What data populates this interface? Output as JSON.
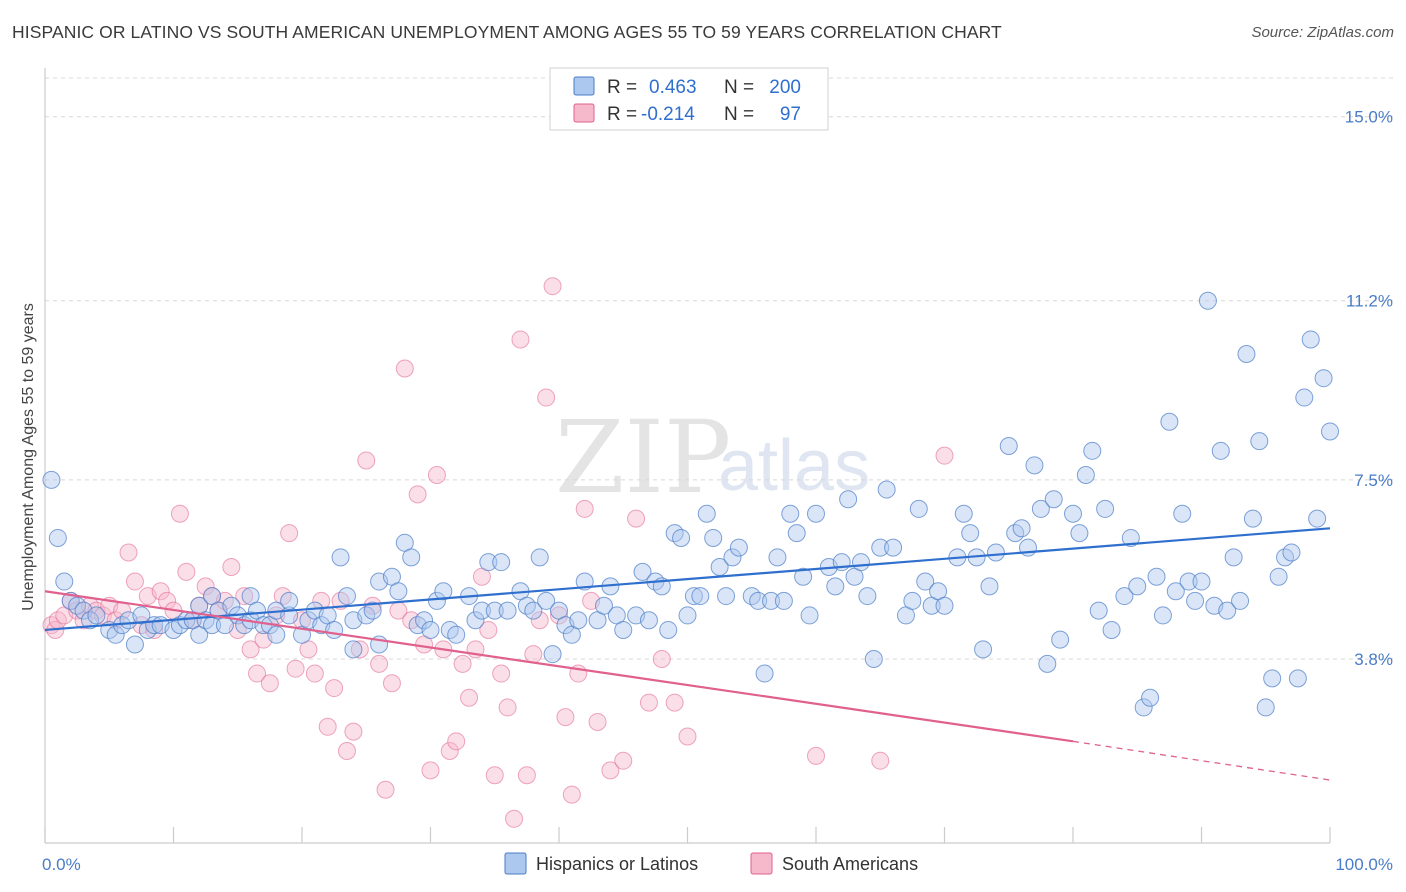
{
  "header": {
    "title": "HISPANIC OR LATINO VS SOUTH AMERICAN UNEMPLOYMENT AMONG AGES 55 TO 59 YEARS CORRELATION CHART",
    "source": "Source: ZipAtlas.com"
  },
  "watermark": {
    "zip": "ZIP",
    "atlas": "atlas"
  },
  "legend": {
    "rows": [
      {
        "r_label": "R =",
        "r_value": "0.463",
        "n_label": "N =",
        "n_value": "200"
      },
      {
        "r_label": "R =",
        "r_value": "-0.214",
        "n_label": "N =",
        "n_value": "97"
      }
    ]
  },
  "bottom_legend": {
    "series1": "Hispanics or Latinos",
    "series2": "South Americans"
  },
  "colors": {
    "blue": "#4a7cc7",
    "blue_fill": "#adc8ee",
    "blue_line": "#2f6fce",
    "pink": "#e0608e",
    "pink_fill": "#f6b9cc",
    "grid": "#d8d8d8",
    "axis": "#cccccc"
  },
  "chart_data": {
    "type": "scatter",
    "title": "HISPANIC OR LATINO VS SOUTH AMERICAN UNEMPLOYMENT AMONG AGES 55 TO 59 YEARS CORRELATION CHART",
    "xlabel": "",
    "ylabel": "Unemployment Among Ages 55 to 59 years",
    "xlim": [
      0,
      100
    ],
    "ylim": [
      0,
      15.8
    ],
    "x_tick_labels": [
      "0.0%",
      "100.0%"
    ],
    "y_ticks": [
      3.8,
      7.5,
      11.2,
      15.0
    ],
    "y_tick_labels": [
      "3.8%",
      "7.5%",
      "11.2%",
      "15.0%"
    ],
    "grid": true,
    "legend_position": "top-center",
    "series": [
      {
        "name": "Hispanics or Latinos",
        "color": "#4a7cc7",
        "R": 0.463,
        "N": 200,
        "trend": {
          "x": [
            0,
            100
          ],
          "y": [
            4.4,
            6.5
          ]
        },
        "points": [
          [
            0.5,
            7.5
          ],
          [
            1,
            6.3
          ],
          [
            1.5,
            5.4
          ],
          [
            2,
            5.0
          ],
          [
            2.5,
            4.9
          ],
          [
            3,
            4.8
          ],
          [
            3.5,
            4.6
          ],
          [
            4,
            4.7
          ],
          [
            5,
            4.4
          ],
          [
            5.5,
            4.3
          ],
          [
            6,
            4.5
          ],
          [
            6.5,
            4.6
          ],
          [
            7,
            4.1
          ],
          [
            7.5,
            4.7
          ],
          [
            8,
            4.4
          ],
          [
            8.5,
            4.5
          ],
          [
            9,
            4.5
          ],
          [
            10,
            4.4
          ],
          [
            10.5,
            4.5
          ],
          [
            11,
            4.6
          ],
          [
            11.5,
            4.6
          ],
          [
            12,
            4.3
          ],
          [
            12,
            4.9
          ],
          [
            12.5,
            4.6
          ],
          [
            13,
            4.5
          ],
          [
            13,
            5.1
          ],
          [
            13.5,
            4.8
          ],
          [
            14,
            4.5
          ],
          [
            14.5,
            4.9
          ],
          [
            15,
            4.7
          ],
          [
            15.5,
            4.5
          ],
          [
            16,
            4.6
          ],
          [
            16,
            5.1
          ],
          [
            16.5,
            4.8
          ],
          [
            17,
            4.5
          ],
          [
            17.5,
            4.5
          ],
          [
            18,
            4.3
          ],
          [
            18,
            4.8
          ],
          [
            19,
            4.7
          ],
          [
            19,
            5.0
          ],
          [
            20,
            4.3
          ],
          [
            20.5,
            4.6
          ],
          [
            21,
            4.8
          ],
          [
            21.5,
            4.5
          ],
          [
            22,
            4.7
          ],
          [
            22.5,
            4.4
          ],
          [
            23,
            5.9
          ],
          [
            23.5,
            5.1
          ],
          [
            24,
            4.0
          ],
          [
            24,
            4.6
          ],
          [
            25,
            4.7
          ],
          [
            25.5,
            4.8
          ],
          [
            26,
            5.4
          ],
          [
            26,
            4.1
          ],
          [
            27,
            5.5
          ],
          [
            27.5,
            5.2
          ],
          [
            28,
            6.2
          ],
          [
            28.5,
            5.9
          ],
          [
            29,
            4.5
          ],
          [
            29.5,
            4.6
          ],
          [
            30,
            4.4
          ],
          [
            30.5,
            5.0
          ],
          [
            31,
            5.2
          ],
          [
            31.5,
            4.4
          ],
          [
            32,
            4.3
          ],
          [
            33,
            5.1
          ],
          [
            33.5,
            4.6
          ],
          [
            34,
            4.8
          ],
          [
            34.5,
            5.8
          ],
          [
            35,
            4.8
          ],
          [
            35.5,
            5.8
          ],
          [
            36,
            4.8
          ],
          [
            37,
            5.2
          ],
          [
            37.5,
            4.9
          ],
          [
            38,
            4.8
          ],
          [
            38.5,
            5.9
          ],
          [
            39,
            5.0
          ],
          [
            39.5,
            3.9
          ],
          [
            40,
            4.8
          ],
          [
            40.5,
            4.5
          ],
          [
            41,
            4.3
          ],
          [
            41.5,
            4.6
          ],
          [
            42,
            5.4
          ],
          [
            43,
            4.6
          ],
          [
            43.5,
            4.9
          ],
          [
            44,
            5.3
          ],
          [
            44.5,
            4.7
          ],
          [
            45,
            4.4
          ],
          [
            46,
            4.7
          ],
          [
            46.5,
            5.6
          ],
          [
            47,
            4.6
          ],
          [
            47.5,
            5.4
          ],
          [
            48,
            5.3
          ],
          [
            48.5,
            4.4
          ],
          [
            49,
            6.4
          ],
          [
            49.5,
            6.3
          ],
          [
            50,
            4.7
          ],
          [
            50.5,
            5.1
          ],
          [
            51,
            5.1
          ],
          [
            51.5,
            6.8
          ],
          [
            52,
            6.3
          ],
          [
            52.5,
            5.7
          ],
          [
            53,
            5.1
          ],
          [
            53.5,
            5.9
          ],
          [
            54,
            6.1
          ],
          [
            55,
            5.1
          ],
          [
            55.5,
            5.0
          ],
          [
            56,
            3.5
          ],
          [
            56.5,
            5.0
          ],
          [
            57,
            5.9
          ],
          [
            57.5,
            5.0
          ],
          [
            58,
            6.8
          ],
          [
            58.5,
            6.4
          ],
          [
            59,
            5.5
          ],
          [
            59.5,
            4.7
          ],
          [
            60,
            6.8
          ],
          [
            61,
            5.7
          ],
          [
            61.5,
            5.3
          ],
          [
            62,
            5.8
          ],
          [
            62.5,
            7.1
          ],
          [
            63,
            5.5
          ],
          [
            63.5,
            5.8
          ],
          [
            64,
            5.1
          ],
          [
            64.5,
            3.8
          ],
          [
            65,
            6.1
          ],
          [
            65.5,
            7.3
          ],
          [
            66,
            6.1
          ],
          [
            67,
            4.7
          ],
          [
            67.5,
            5.0
          ],
          [
            68,
            6.9
          ],
          [
            68.5,
            5.4
          ],
          [
            69,
            4.9
          ],
          [
            69.5,
            5.2
          ],
          [
            70,
            4.9
          ],
          [
            71,
            5.9
          ],
          [
            71.5,
            6.8
          ],
          [
            72,
            6.4
          ],
          [
            72.5,
            5.9
          ],
          [
            73,
            4.0
          ],
          [
            73.5,
            5.3
          ],
          [
            74,
            6.0
          ],
          [
            75,
            8.2
          ],
          [
            75.5,
            6.4
          ],
          [
            76,
            6.5
          ],
          [
            76.5,
            6.1
          ],
          [
            77,
            7.8
          ],
          [
            77.5,
            6.9
          ],
          [
            78,
            3.7
          ],
          [
            78.5,
            7.1
          ],
          [
            79,
            4.2
          ],
          [
            80,
            6.8
          ],
          [
            80.5,
            6.4
          ],
          [
            81,
            7.6
          ],
          [
            81.5,
            8.1
          ],
          [
            82,
            4.8
          ],
          [
            82.5,
            6.9
          ],
          [
            83,
            4.4
          ],
          [
            84,
            5.1
          ],
          [
            84.5,
            6.3
          ],
          [
            85,
            5.3
          ],
          [
            85.5,
            2.8
          ],
          [
            86,
            3.0
          ],
          [
            86.5,
            5.5
          ],
          [
            87,
            4.7
          ],
          [
            87.5,
            8.7
          ],
          [
            88,
            5.2
          ],
          [
            88.5,
            6.8
          ],
          [
            89,
            5.4
          ],
          [
            89.5,
            5.0
          ],
          [
            90,
            5.4
          ],
          [
            90.5,
            11.2
          ],
          [
            91,
            4.9
          ],
          [
            91.5,
            8.1
          ],
          [
            92,
            4.8
          ],
          [
            92.5,
            5.9
          ],
          [
            93,
            5.0
          ],
          [
            93.5,
            10.1
          ],
          [
            94,
            6.7
          ],
          [
            94.5,
            8.3
          ],
          [
            95,
            2.8
          ],
          [
            95.5,
            3.4
          ],
          [
            96,
            5.5
          ],
          [
            96.5,
            5.9
          ],
          [
            97,
            6.0
          ],
          [
            97.5,
            3.4
          ],
          [
            98,
            9.2
          ],
          [
            98.5,
            10.4
          ],
          [
            99,
            6.7
          ],
          [
            99.5,
            9.6
          ],
          [
            100,
            8.5
          ]
        ]
      },
      {
        "name": "South Americans",
        "color": "#e0608e",
        "R": -0.214,
        "N": 97,
        "trend": {
          "x": [
            0,
            80
          ],
          "y": [
            5.2,
            2.1
          ]
        },
        "trend_dashed": {
          "x": [
            80,
            100
          ],
          "y": [
            2.1,
            1.3
          ]
        },
        "points": [
          [
            0.5,
            4.5
          ],
          [
            0.8,
            4.4
          ],
          [
            1,
            4.6
          ],
          [
            1.5,
            4.7
          ],
          [
            2,
            5.0
          ],
          [
            2.5,
            4.8
          ],
          [
            3,
            4.6
          ],
          [
            3.5,
            4.9
          ],
          [
            4,
            4.8
          ],
          [
            4.5,
            4.7
          ],
          [
            5,
            4.9
          ],
          [
            5.5,
            4.6
          ],
          [
            6,
            4.8
          ],
          [
            6.5,
            6.0
          ],
          [
            7,
            5.4
          ],
          [
            7.5,
            4.5
          ],
          [
            8,
            5.1
          ],
          [
            8.5,
            4.4
          ],
          [
            9,
            5.2
          ],
          [
            9.5,
            5.0
          ],
          [
            10,
            4.8
          ],
          [
            10.5,
            6.8
          ],
          [
            11,
            5.6
          ],
          [
            11.5,
            4.6
          ],
          [
            12,
            4.9
          ],
          [
            12.5,
            5.3
          ],
          [
            13,
            5.1
          ],
          [
            13.5,
            4.8
          ],
          [
            14,
            5.0
          ],
          [
            14.5,
            5.7
          ],
          [
            15,
            4.4
          ],
          [
            15.5,
            5.1
          ],
          [
            16,
            4.0
          ],
          [
            16.5,
            3.5
          ],
          [
            17,
            4.2
          ],
          [
            17.5,
            3.3
          ],
          [
            18,
            4.7
          ],
          [
            18.5,
            5.1
          ],
          [
            19,
            6.4
          ],
          [
            19.5,
            3.6
          ],
          [
            20,
            4.6
          ],
          [
            20.5,
            4.0
          ],
          [
            21,
            3.5
          ],
          [
            21.5,
            5.0
          ],
          [
            22,
            2.4
          ],
          [
            22.5,
            3.2
          ],
          [
            23,
            5.0
          ],
          [
            23.5,
            1.9
          ],
          [
            24,
            2.3
          ],
          [
            24.5,
            4.0
          ],
          [
            25,
            7.9
          ],
          [
            25.5,
            4.9
          ],
          [
            26,
            3.7
          ],
          [
            26.5,
            1.1
          ],
          [
            27,
            3.3
          ],
          [
            27.5,
            4.8
          ],
          [
            28,
            9.8
          ],
          [
            28.5,
            4.6
          ],
          [
            29,
            7.2
          ],
          [
            29.5,
            4.1
          ],
          [
            30,
            1.5
          ],
          [
            30.5,
            7.6
          ],
          [
            31,
            4.0
          ],
          [
            31.5,
            1.9
          ],
          [
            32,
            2.1
          ],
          [
            32.5,
            3.7
          ],
          [
            33,
            3.0
          ],
          [
            33.5,
            4.0
          ],
          [
            34,
            5.5
          ],
          [
            34.5,
            4.4
          ],
          [
            35,
            1.4
          ],
          [
            35.5,
            3.5
          ],
          [
            36,
            2.8
          ],
          [
            36.5,
            0.5
          ],
          [
            37,
            10.4
          ],
          [
            37.5,
            1.4
          ],
          [
            38,
            3.9
          ],
          [
            38.5,
            4.6
          ],
          [
            39,
            9.2
          ],
          [
            39.5,
            11.5
          ],
          [
            40,
            4.7
          ],
          [
            40.5,
            2.6
          ],
          [
            41,
            1.0
          ],
          [
            41.5,
            3.5
          ],
          [
            42,
            6.9
          ],
          [
            42.5,
            5.0
          ],
          [
            43,
            2.5
          ],
          [
            44,
            1.5
          ],
          [
            45,
            1.7
          ],
          [
            46,
            6.7
          ],
          [
            47,
            2.9
          ],
          [
            48,
            3.8
          ],
          [
            49,
            2.9
          ],
          [
            50,
            2.2
          ],
          [
            60,
            1.8
          ],
          [
            65,
            1.7
          ],
          [
            70,
            8.0
          ]
        ]
      }
    ]
  }
}
